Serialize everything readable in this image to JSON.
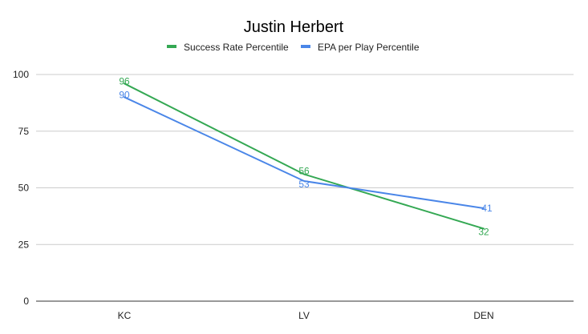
{
  "chart_data": {
    "type": "line",
    "title": "Justin Herbert",
    "categories": [
      "KC",
      "LV",
      "DEN"
    ],
    "ylim": [
      0,
      100
    ],
    "yticks": [
      0,
      25,
      50,
      75,
      100
    ],
    "grid": true,
    "legend_position": "top",
    "series": [
      {
        "name": "Success Rate Percentile",
        "color": "#34a853",
        "values": [
          96,
          56,
          32
        ]
      },
      {
        "name": "EPA per Play Percentile",
        "color": "#4a86e8",
        "values": [
          90,
          53,
          41
        ]
      }
    ]
  }
}
